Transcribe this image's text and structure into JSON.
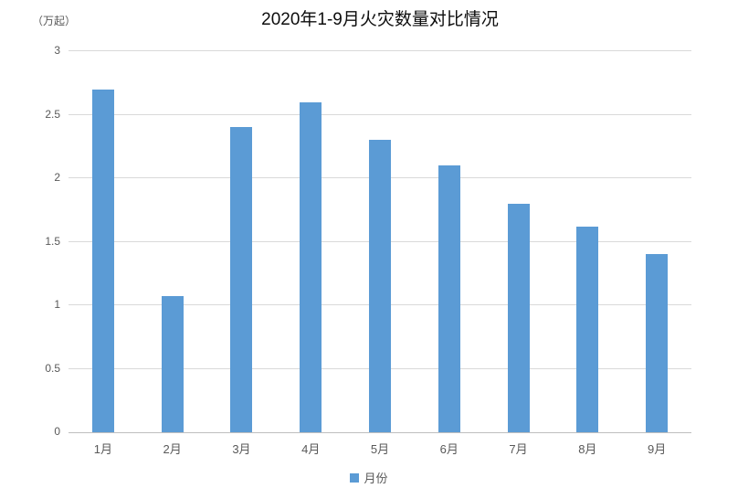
{
  "chart_data": {
    "type": "bar",
    "title": "2020年1-9月火灾数量对比情况",
    "ylabel": "（万起）",
    "xlabel": "",
    "categories": [
      "1月",
      "2月",
      "3月",
      "4月",
      "5月",
      "6月",
      "7月",
      "8月",
      "9月"
    ],
    "values": [
      2.7,
      1.07,
      2.4,
      2.6,
      2.3,
      2.1,
      1.8,
      1.62,
      1.4
    ],
    "series_name": "月份",
    "legend_label": "月份",
    "legend_position": "bottom",
    "ylim": [
      0,
      3
    ],
    "yticks": [
      0,
      0.5,
      1,
      1.5,
      2,
      2.5,
      3
    ],
    "ytick_labels": [
      "0",
      "0.5",
      "1",
      "1.5",
      "2",
      "2.5",
      "3"
    ],
    "grid": true,
    "colors": {
      "bar": "#5b9bd5",
      "gridline": "#d9d9d9",
      "axis_line": "#bfbfbf",
      "tick_label": "#595959",
      "title": "#0d0d0d",
      "background": "#ffffff"
    }
  }
}
